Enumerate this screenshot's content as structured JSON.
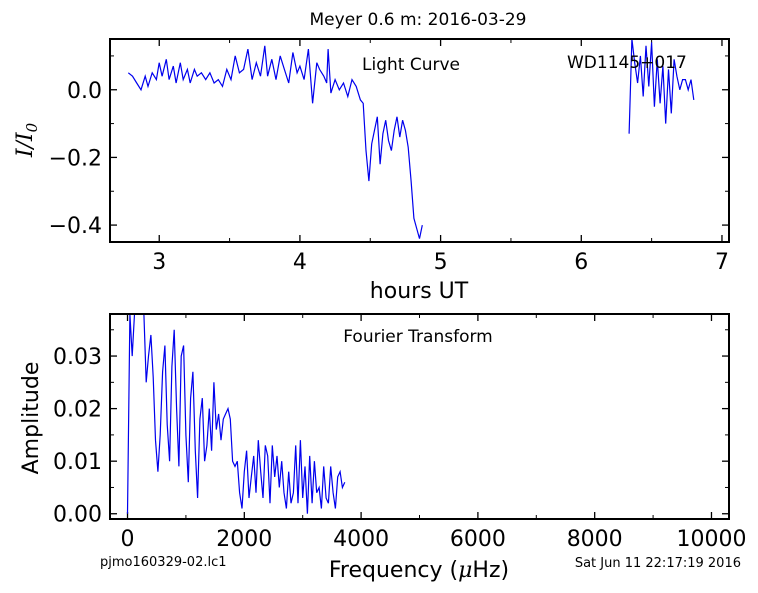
{
  "figure": {
    "title": "Meyer 0.6 m:  2016-03-29",
    "footer_left": "pjmo160329-02.lc1",
    "footer_right": "Sat Jun 11 22:17:19 2016"
  },
  "chart_data": [
    {
      "type": "line",
      "panel": "light-curve",
      "annotation_left": "Light Curve",
      "annotation_right": "WD1145+017",
      "xlabel": "hours UT",
      "ylabel": "I/I0",
      "xlim": [
        2.65,
        7.05
      ],
      "ylim": [
        -0.45,
        0.15
      ],
      "xticks": [
        3,
        4,
        5,
        6,
        7
      ],
      "yticks": [
        0.0,
        -0.2,
        -0.4
      ],
      "ytick_labels": [
        "0.0",
        "−0.2",
        "−0.4"
      ],
      "color": "#0000ee",
      "series": [
        {
          "x": [
            2.78,
            2.81,
            2.84,
            2.87,
            2.9,
            2.92,
            2.95,
            2.98,
            3.0,
            3.02,
            3.05,
            3.07,
            3.1,
            3.12,
            3.15,
            3.17,
            3.2,
            3.22,
            3.25,
            3.27,
            3.3,
            3.33,
            3.36,
            3.39,
            3.42,
            3.45,
            3.48,
            3.51,
            3.54,
            3.57,
            3.6,
            3.63,
            3.66,
            3.69,
            3.72,
            3.75,
            3.77,
            3.8,
            3.83,
            3.86,
            3.89,
            3.92,
            3.95,
            3.98,
            4.0,
            4.03,
            4.06,
            4.09,
            4.12,
            4.14,
            4.17,
            4.19,
            4.2,
            4.22,
            4.25,
            4.28,
            4.31,
            4.34,
            4.37,
            4.4,
            4.43,
            4.45,
            4.47,
            4.49,
            4.51,
            4.53,
            4.55,
            4.57,
            4.59,
            4.61,
            4.63,
            4.65,
            4.67,
            4.69,
            4.71,
            4.73,
            4.75,
            4.77,
            4.79,
            4.81,
            4.83,
            4.85,
            4.87
          ],
          "y": [
            0.05,
            0.04,
            0.02,
            0.0,
            0.04,
            0.01,
            0.05,
            0.03,
            0.08,
            0.04,
            0.09,
            0.03,
            0.07,
            0.02,
            0.08,
            0.03,
            0.06,
            0.02,
            0.06,
            0.04,
            0.05,
            0.03,
            0.05,
            0.02,
            0.03,
            0.01,
            0.06,
            0.03,
            0.1,
            0.05,
            0.06,
            0.12,
            0.03,
            0.08,
            0.04,
            0.13,
            0.04,
            0.09,
            0.03,
            0.1,
            0.06,
            0.02,
            0.11,
            0.05,
            0.07,
            0.03,
            0.12,
            -0.04,
            0.08,
            0.06,
            0.04,
            0.02,
            0.12,
            -0.01,
            0.03,
            0.0,
            0.02,
            -0.02,
            0.03,
            0.01,
            -0.03,
            -0.04,
            -0.18,
            -0.27,
            -0.16,
            -0.12,
            -0.08,
            -0.22,
            -0.13,
            -0.09,
            -0.15,
            -0.18,
            -0.12,
            -0.08,
            -0.14,
            -0.09,
            -0.12,
            -0.17,
            -0.27,
            -0.38,
            -0.41,
            -0.44,
            -0.4
          ]
        },
        {
          "x": [
            6.34,
            6.36,
            6.38,
            6.4,
            6.42,
            6.44,
            6.46,
            6.48,
            6.5,
            6.52,
            6.54,
            6.56,
            6.58,
            6.6,
            6.62,
            6.64,
            6.66,
            6.68,
            6.7,
            6.72,
            6.74,
            6.76,
            6.78,
            6.8
          ],
          "y": [
            -0.13,
            0.15,
            0.08,
            0.02,
            0.1,
            -0.02,
            0.13,
            0.01,
            0.14,
            -0.05,
            0.09,
            -0.04,
            0.07,
            -0.1,
            0.06,
            -0.07,
            0.09,
            0.04,
            0.0,
            0.03,
            0.03,
            0.0,
            0.03,
            -0.03
          ]
        }
      ]
    },
    {
      "type": "line",
      "panel": "fourier-transform",
      "annotation": "Fourier Transform",
      "xlabel": "Frequency (μHz)",
      "ylabel": "Amplitude",
      "xlim": [
        -300,
        10300
      ],
      "ylim": [
        -0.001,
        0.038
      ],
      "xticks": [
        0,
        2000,
        4000,
        6000,
        8000,
        10000
      ],
      "yticks": [
        0.0,
        0.01,
        0.02,
        0.03
      ],
      "ytick_labels": [
        "0.00",
        "0.01",
        "0.02",
        "0.03"
      ],
      "color": "#0000ee",
      "series": [
        {
          "x": [
            0,
            40,
            80,
            120,
            160,
            200,
            240,
            280,
            320,
            360,
            400,
            440,
            480,
            520,
            560,
            600,
            640,
            680,
            720,
            760,
            800,
            840,
            880,
            920,
            960,
            1000,
            1040,
            1080,
            1120,
            1160,
            1200,
            1240,
            1280,
            1320,
            1360,
            1400,
            1440,
            1480,
            1520,
            1560,
            1600,
            1640,
            1680,
            1720,
            1760,
            1800,
            1840,
            1880,
            1920,
            1960,
            2000,
            2040,
            2080,
            2120,
            2160,
            2200,
            2240,
            2280,
            2320,
            2360,
            2400,
            2440,
            2480,
            2520,
            2560,
            2600,
            2640,
            2680,
            2720,
            2760,
            2800,
            2840,
            2880,
            2920,
            2960,
            3000,
            3040,
            3080,
            3120,
            3160,
            3200,
            3240,
            3280,
            3320,
            3360,
            3400,
            3440,
            3480,
            3520,
            3560,
            3600,
            3640,
            3680,
            3720
          ],
          "y": [
            0.0,
            0.038,
            0.03,
            0.038,
            0.038,
            0.038,
            0.038,
            0.038,
            0.025,
            0.03,
            0.034,
            0.026,
            0.014,
            0.008,
            0.015,
            0.027,
            0.032,
            0.017,
            0.01,
            0.028,
            0.035,
            0.02,
            0.009,
            0.03,
            0.032,
            0.015,
            0.006,
            0.022,
            0.027,
            0.012,
            0.003,
            0.018,
            0.022,
            0.01,
            0.013,
            0.02,
            0.012,
            0.025,
            0.016,
            0.019,
            0.014,
            0.018,
            0.019,
            0.02,
            0.018,
            0.01,
            0.009,
            0.01,
            0.004,
            0.001,
            0.008,
            0.012,
            0.003,
            0.007,
            0.011,
            0.004,
            0.014,
            0.008,
            0.003,
            0.013,
            0.011,
            0.002,
            0.013,
            0.007,
            0.011,
            0.005,
            0.01,
            0.004,
            0.001,
            0.008,
            0.002,
            0.004,
            0.013,
            0.002,
            0.014,
            0.003,
            0.009,
            0.0,
            0.011,
            0.002,
            0.01,
            0.004,
            0.005,
            0.001,
            0.009,
            0.003,
            0.002,
            0.009,
            0.004,
            0.001,
            0.007,
            0.008,
            0.005,
            0.006
          ]
        }
      ]
    }
  ]
}
